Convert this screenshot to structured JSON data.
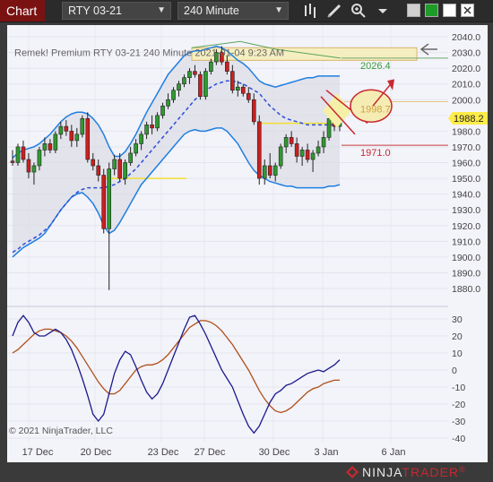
{
  "toolbar": {
    "tab_label": "Chart",
    "instrument": "RTY 03-21",
    "interval": "240 Minute",
    "icons": [
      "bar-style-icon",
      "draw-tools-icon",
      "zoom-icon",
      "dropdown-icon"
    ],
    "color_squares": [
      "#cfcfcf",
      "#1f9b2a",
      "#ffffff",
      "#ffffff"
    ]
  },
  "overlay": {
    "label": "Remek!  Premium  RTY 03-21  240 Minute  2021-01-04 9:23 AM",
    "copyright": "© 2021 NinjaTrader, LLC"
  },
  "annotations": {
    "target_price": "2026.4",
    "level_price": "1998.7",
    "stop_price": "1971.0",
    "last_price": "1988.2"
  },
  "price_axis": [
    "2040.0",
    "2030.0",
    "2020.0",
    "2010.0",
    "2000.0",
    "1990.0",
    "1980.0",
    "1970.0",
    "1960.0",
    "1950.0",
    "1940.0",
    "1930.0",
    "1920.0",
    "1910.0",
    "1900.0",
    "1890.0",
    "1880.0"
  ],
  "osc_axis": [
    "30",
    "20",
    "10",
    "0",
    "-10",
    "-20",
    "-30",
    "-40"
  ],
  "date_axis": [
    "17 Dec",
    "20 Dec",
    "23 Dec",
    "27 Dec",
    "30 Dec",
    "3 Jan",
    "6 Jan"
  ],
  "branding": {
    "name_plain": "NINJA",
    "name_accent": "TRADER",
    "reg": "®"
  },
  "colors": {
    "up_candle": "#2f9a2f",
    "down_candle": "#cc1f1f",
    "band": "#1e7fe0",
    "midline": "#2a4fd8",
    "osc_fast": "#1a1a8c",
    "osc_slow": "#b0501a",
    "accent": "#c8282e",
    "last_price_bg": "#ffec48"
  },
  "chart_data": {
    "type": "candlestick",
    "price_ylim": [
      1873,
      2044
    ],
    "osc_ylim": [
      -41,
      36
    ],
    "candles": [
      [
        1961,
        1968,
        1958,
        1960
      ],
      [
        1960,
        1972,
        1958,
        1970
      ],
      [
        1970,
        1974,
        1960,
        1962
      ],
      [
        1962,
        1966,
        1950,
        1954
      ],
      [
        1954,
        1960,
        1946,
        1958
      ],
      [
        1958,
        1970,
        1955,
        1968
      ],
      [
        1968,
        1976,
        1964,
        1972
      ],
      [
        1972,
        1975,
        1966,
        1968
      ],
      [
        1968,
        1980,
        1966,
        1978
      ],
      [
        1978,
        1986,
        1975,
        1983
      ],
      [
        1983,
        1987,
        1977,
        1980
      ],
      [
        1980,
        1984,
        1970,
        1974
      ],
      [
        1974,
        1982,
        1970,
        1978
      ],
      [
        1978,
        1990,
        1976,
        1988
      ],
      [
        1988,
        1992,
        1960,
        1962
      ],
      [
        1962,
        1966,
        1955,
        1958
      ],
      [
        1958,
        1962,
        1948,
        1952
      ],
      [
        1952,
        1956,
        1915,
        1918
      ],
      [
        1918,
        1960,
        1879,
        1956
      ],
      [
        1956,
        1965,
        1952,
        1962
      ],
      [
        1962,
        1966,
        1948,
        1950
      ],
      [
        1950,
        1962,
        1946,
        1960
      ],
      [
        1960,
        1970,
        1958,
        1966
      ],
      [
        1966,
        1975,
        1964,
        1972
      ],
      [
        1972,
        1980,
        1968,
        1978
      ],
      [
        1978,
        1986,
        1975,
        1984
      ],
      [
        1984,
        1990,
        1978,
        1982
      ],
      [
        1982,
        1992,
        1980,
        1990
      ],
      [
        1990,
        1998,
        1988,
        1996
      ],
      [
        1996,
        2004,
        1994,
        2000
      ],
      [
        2000,
        2008,
        1998,
        2006
      ],
      [
        2006,
        2012,
        2002,
        2010
      ],
      [
        2010,
        2016,
        2008,
        2014
      ],
      [
        2014,
        2020,
        2010,
        2018
      ],
      [
        2018,
        2022,
        2014,
        2016
      ],
      [
        2016,
        2018,
        2000,
        2002
      ],
      [
        2002,
        2020,
        2000,
        2018
      ],
      [
        2018,
        2026,
        2016,
        2024
      ],
      [
        2024,
        2032,
        2022,
        2030
      ],
      [
        2030,
        2034,
        2022,
        2024
      ],
      [
        2024,
        2028,
        2016,
        2018
      ],
      [
        2018,
        2022,
        2004,
        2006
      ],
      [
        2006,
        2012,
        2002,
        2008
      ],
      [
        2008,
        2010,
        2002,
        2004
      ],
      [
        2004,
        2008,
        1998,
        2000
      ],
      [
        2000,
        2004,
        1984,
        1986
      ],
      [
        1986,
        1990,
        1946,
        1950
      ],
      [
        1950,
        1962,
        1946,
        1958
      ],
      [
        1958,
        1966,
        1950,
        1952
      ],
      [
        1952,
        1960,
        1948,
        1958
      ],
      [
        1958,
        1972,
        1956,
        1970
      ],
      [
        1970,
        1978,
        1966,
        1976
      ],
      [
        1976,
        1980,
        1970,
        1972
      ],
      [
        1972,
        1976,
        1960,
        1964
      ],
      [
        1964,
        1970,
        1958,
        1968
      ],
      [
        1968,
        1972,
        1960,
        1962
      ],
      [
        1962,
        1968,
        1954,
        1966
      ],
      [
        1966,
        1974,
        1964,
        1970
      ],
      [
        1970,
        1980,
        1966,
        1976
      ],
      [
        1976,
        1990,
        1974,
        1988
      ],
      [
        1988,
        1994,
        1980,
        1983
      ],
      [
        1983,
        1990,
        1980,
        1988
      ]
    ],
    "upper_band": [
      1963,
      1966,
      1968,
      1969,
      1970,
      1972,
      1975,
      1978,
      1982,
      1986,
      1989,
      1991,
      1992,
      1992,
      1991,
      1988,
      1984,
      1978,
      1970,
      1964,
      1964,
      1967,
      1972,
      1978,
      1985,
      1992,
      1998,
      2004,
      2010,
      2016,
      2020,
      2024,
      2028,
      2030,
      2031,
      2031,
      2032,
      2033,
      2034,
      2033,
      2031,
      2028,
      2025,
      2023,
      2020,
      2016,
      2012,
      2010,
      2009,
      2008,
      2009,
      2010,
      2011,
      2012,
      2013,
      2014,
      2014,
      2015,
      2015,
      2015,
      2015,
      2015
    ],
    "lower_band": [
      1900,
      1903,
      1906,
      1908,
      1910,
      1912,
      1915,
      1920,
      1925,
      1930,
      1934,
      1938,
      1940,
      1941,
      1938,
      1934,
      1928,
      1920,
      1915,
      1917,
      1922,
      1928,
      1934,
      1940,
      1946,
      1950,
      1954,
      1958,
      1962,
      1966,
      1970,
      1974,
      1978,
      1980,
      1981,
      1980,
      1980,
      1981,
      1982,
      1982,
      1980,
      1976,
      1972,
      1966,
      1960,
      1955,
      1952,
      1950,
      1948,
      1947,
      1946,
      1945,
      1945,
      1944,
      1944,
      1944,
      1944,
      1944,
      1944,
      1945,
      1945,
      1946
    ],
    "middle_line": [
      1903,
      1905,
      1908,
      1910,
      1912,
      1914,
      1917,
      1920,
      1925,
      1930,
      1934,
      1938,
      1941,
      1943,
      1944,
      1944,
      1944,
      1944,
      1945,
      1946,
      1948,
      1950,
      1953,
      1956,
      1960,
      1964,
      1968,
      1972,
      1976,
      1980,
      1984,
      1988,
      1992,
      1996,
      2000,
      2003,
      2006,
      2008,
      2010,
      2011,
      2012,
      2012,
      2011,
      2010,
      2008,
      2006,
      2004,
      2000,
      1996,
      1993,
      1990,
      1988,
      1987,
      1986,
      1985,
      1984,
      1984,
      1984,
      1984,
      1984,
      1984,
      1984
    ],
    "osc_fast": [
      20,
      28,
      32,
      28,
      22,
      20,
      20,
      22,
      24,
      22,
      18,
      12,
      4,
      -5,
      -15,
      -26,
      -30,
      -26,
      -14,
      -2,
      6,
      11,
      9,
      2,
      -6,
      -13,
      -17,
      -14,
      -8,
      0,
      8,
      16,
      24,
      31,
      32,
      27,
      21,
      14,
      7,
      0,
      -5,
      -10,
      -18,
      -26,
      -33,
      -37,
      -33,
      -26,
      -19,
      -14,
      -12,
      -9,
      -8,
      -6,
      -4,
      -2,
      -1,
      0,
      -1,
      1,
      3,
      6
    ],
    "osc_slow": [
      10,
      12,
      15,
      18,
      21,
      23,
      24,
      24,
      23,
      22,
      20,
      17,
      13,
      8,
      3,
      -2,
      -7,
      -11,
      -14,
      -14,
      -12,
      -8,
      -4,
      0,
      2,
      3,
      3,
      4,
      6,
      9,
      13,
      17,
      21,
      25,
      27,
      29,
      29,
      28,
      26,
      23,
      19,
      15,
      10,
      5,
      0,
      -6,
      -12,
      -17,
      -21,
      -24,
      -25,
      -24,
      -22,
      -19,
      -16,
      -13,
      -11,
      -10,
      -8,
      -7,
      -6,
      -6
    ]
  }
}
